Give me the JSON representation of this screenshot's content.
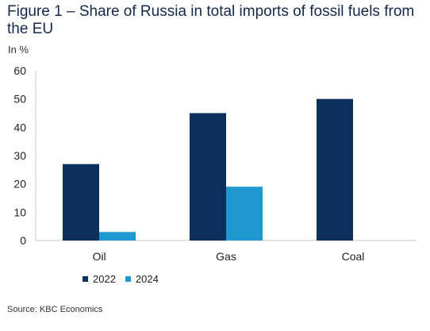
{
  "title": "Figure 1 – Share of Russia in total imports of fossil fuels from the EU",
  "unit_label": "In %",
  "source": "Source: KBC Economics",
  "colors": {
    "2022": "#0d2f5c",
    "2024": "#1f97cf",
    "axis": "#c8c8c8"
  },
  "chart_data": {
    "type": "bar",
    "categories": [
      "Oil",
      "Gas",
      "Coal"
    ],
    "series": [
      {
        "name": "2022",
        "values": [
          27,
          45,
          50
        ]
      },
      {
        "name": "2024",
        "values": [
          3,
          19,
          0
        ]
      }
    ],
    "ylim": [
      0,
      60
    ],
    "yticks": [
      0,
      10,
      20,
      30,
      40,
      50,
      60
    ],
    "ylabel": "In %",
    "xlabel": "",
    "grid": false,
    "legend": "bottom-left"
  }
}
